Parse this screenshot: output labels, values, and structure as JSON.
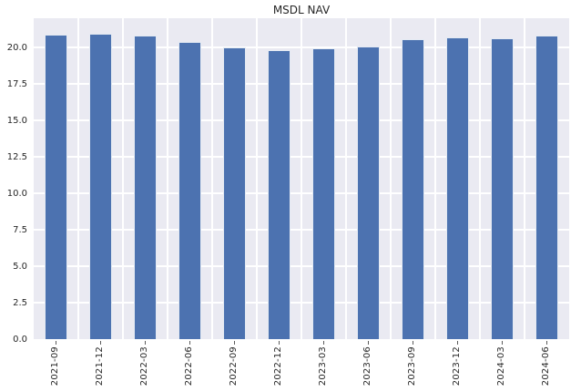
{
  "chart_data": {
    "type": "bar",
    "title": "MSDL NAV",
    "categories": [
      "2021-09",
      "2021-12",
      "2022-03",
      "2022-06",
      "2022-09",
      "2022-12",
      "2023-03",
      "2023-06",
      "2023-09",
      "2023-12",
      "2024-03",
      "2024-06"
    ],
    "values": [
      20.89,
      20.91,
      20.8,
      20.4,
      20.01,
      19.81,
      19.94,
      20.07,
      20.55,
      20.66,
      20.64,
      20.83
    ],
    "xlabel": "",
    "ylabel": "",
    "ylim": [
      0,
      22
    ],
    "yticks": [
      0,
      2.5,
      5,
      7.5,
      10,
      12.5,
      15,
      17.5,
      20
    ],
    "ytick_labels": [
      "0.0",
      "2.5",
      "5.0",
      "7.5",
      "10.0",
      "12.5",
      "15.0",
      "17.5",
      "20.0"
    ],
    "xtick_rotation": 90,
    "grid": "both",
    "legend": "none",
    "colors": {
      "bar": "#4C72B0",
      "bar_edge": "#FFFFFF",
      "plot_background": "#EAEAF2",
      "gridline": "#FFFFFF",
      "text": "#262626",
      "figure_background": "#FFFFFF"
    }
  }
}
